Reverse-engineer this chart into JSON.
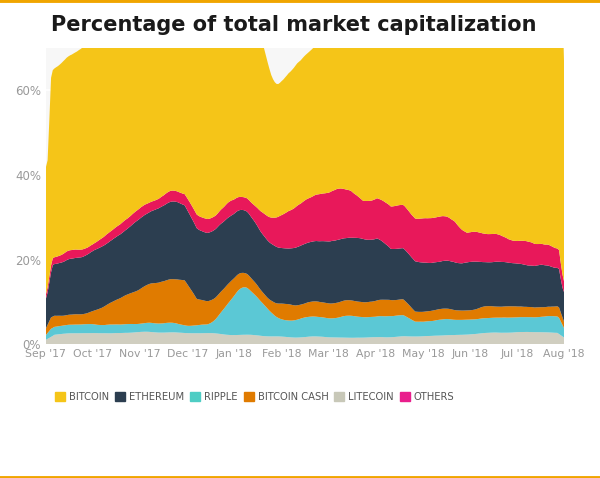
{
  "title": "Percentage of total market capitalization",
  "title_fontsize": 15,
  "title_fontweight": "bold",
  "background_color": "#ffffff",
  "plot_bg_color": "#f7f7f7",
  "grid_color": "#ffffff",
  "top_border_color": "#f0a500",
  "bottom_border_color": "#f0a500",
  "ylim": [
    0,
    0.7
  ],
  "yticks": [
    0.0,
    0.2,
    0.4,
    0.6
  ],
  "legend_labels": [
    "BITCOIN",
    "ETHEREUM",
    "RIPPLE",
    "BITCOIN CASH",
    "LITECOIN",
    "OTHERS"
  ],
  "legend_colors": [
    "#f5c518",
    "#2c3e50",
    "#4ecdc4",
    "#e07b00",
    "#c8c8b8",
    "#e91e8c"
  ],
  "colors": {
    "bitcoin": "#f5c518",
    "ethereum": "#2c3e50",
    "ripple": "#5bc8d5",
    "bitcoin_cash": "#e07b00",
    "litecoin": "#d0cec0",
    "others": "#e8185a"
  },
  "n_points": 300
}
